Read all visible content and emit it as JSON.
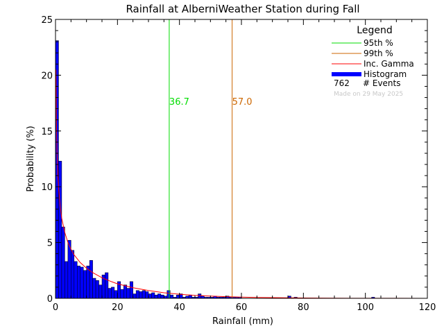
{
  "chart_data": {
    "type": "bar",
    "title": "Rainfall at AlberniWeather Station during Fall",
    "xlabel": "Rainfall (mm)",
    "ylabel": "Probability (%)",
    "xlim": [
      0,
      120
    ],
    "ylim": [
      0,
      25
    ],
    "x_ticks": [
      "0",
      "20",
      "40",
      "60",
      "80",
      "100",
      "120"
    ],
    "y_ticks": [
      "0",
      "5",
      "10",
      "15",
      "20",
      "25"
    ],
    "bin_width_mm": 1,
    "histogram": {
      "name": "Histogram",
      "bins_start": [
        0,
        1,
        2,
        3,
        4,
        5,
        6,
        7,
        8,
        9,
        10,
        11,
        12,
        13,
        14,
        15,
        16,
        17,
        18,
        19,
        20,
        21,
        22,
        23,
        24,
        25,
        26,
        27,
        28,
        29,
        30,
        31,
        32,
        33,
        34,
        35,
        36,
        37,
        38,
        39,
        40,
        41,
        42,
        43,
        44,
        45,
        46,
        47,
        48,
        49,
        50,
        51,
        52,
        53,
        54,
        55,
        56,
        57,
        58,
        59,
        75,
        77,
        102
      ],
      "values": [
        23.1,
        12.3,
        6.4,
        3.3,
        5.2,
        4.3,
        3.3,
        2.9,
        2.8,
        2.5,
        2.9,
        3.4,
        1.8,
        1.6,
        1.2,
        2.1,
        2.3,
        0.9,
        1.0,
        0.7,
        1.5,
        0.8,
        1.2,
        0.9,
        1.5,
        0.4,
        0.7,
        0.6,
        0.7,
        0.6,
        0.4,
        0.5,
        0.3,
        0.4,
        0.3,
        0.2,
        0.7,
        0.3,
        0.1,
        0.3,
        0.4,
        0.1,
        0.2,
        0.3,
        0.1,
        0.1,
        0.4,
        0.2,
        0.1,
        0.1,
        0.1,
        0.2,
        0.1,
        0.1,
        0.1,
        0.2,
        0.1,
        0.1,
        0.1,
        0.1,
        0.2,
        0.1,
        0.1
      ],
      "color": "#0000ff"
    },
    "inc_gamma_curve": {
      "name": "Inc. Gamma",
      "color": "#ff0000",
      "x": [
        0.15,
        0.3,
        0.5,
        0.75,
        1,
        1.5,
        2,
        3,
        4,
        5,
        6,
        8,
        10,
        12,
        15,
        18,
        20,
        25,
        30,
        35,
        40,
        45,
        50,
        55,
        60,
        65,
        70,
        80,
        90,
        100,
        110,
        120
      ],
      "y": [
        20.5,
        16.0,
        13.0,
        11.2,
        9.9,
        8.3,
        7.2,
        5.9,
        5.0,
        4.4,
        3.9,
        3.2,
        2.7,
        2.3,
        1.85,
        1.5,
        1.3,
        0.95,
        0.7,
        0.5,
        0.37,
        0.27,
        0.2,
        0.15,
        0.11,
        0.08,
        0.06,
        0.03,
        0.015,
        0.008,
        0.004,
        0.002
      ]
    },
    "p95": {
      "name": "95th %",
      "value": 36.7,
      "label": "36.7",
      "color": "#00dd00"
    },
    "p99": {
      "name": "99th %",
      "value": 57.0,
      "label": "57.0",
      "color": "#cc6600"
    },
    "legend": {
      "title": "Legend",
      "position": "top-right",
      "items": [
        {
          "label": "95th %",
          "color": "#00dd00",
          "style": "line"
        },
        {
          "label": "99th %",
          "color": "#cc6600",
          "style": "line"
        },
        {
          "label": "Inc. Gamma",
          "color": "#ff0000",
          "style": "line"
        },
        {
          "label": "Histogram",
          "color": "#0000ff",
          "style": "thick"
        }
      ],
      "events_count": "762",
      "events_label": "# Events",
      "made_on": "Made on 29 May 2025",
      "made_on_color": "#c8c8c8"
    }
  }
}
